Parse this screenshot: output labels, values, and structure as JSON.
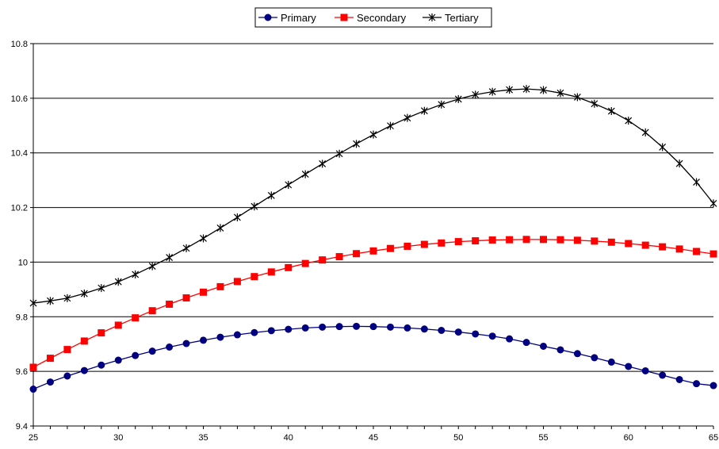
{
  "chart_data": {
    "type": "line",
    "title": "",
    "xlabel": "",
    "ylabel": "",
    "xlim": [
      25,
      65
    ],
    "ylim": [
      9.4,
      10.8
    ],
    "x_ticks": [
      25,
      30,
      35,
      40,
      45,
      50,
      55,
      60,
      65
    ],
    "y_ticks": [
      9.4,
      9.6,
      9.8,
      10,
      10.2,
      10.4,
      10.6,
      10.8
    ],
    "y_tick_labels": [
      "9.4",
      "9.6",
      "9.8",
      "10",
      "10.2",
      "10.4",
      "10.6",
      "10.8"
    ],
    "grid": "horizontal",
    "legend_position": "top-center",
    "x": [
      25,
      26,
      27,
      28,
      29,
      30,
      31,
      32,
      33,
      34,
      35,
      36,
      37,
      38,
      39,
      40,
      41,
      42,
      43,
      44,
      45,
      46,
      47,
      48,
      49,
      50,
      51,
      52,
      53,
      54,
      55,
      56,
      57,
      58,
      59,
      60,
      61,
      62,
      63,
      64,
      65
    ],
    "series": [
      {
        "name": "Primary",
        "color": "#000080",
        "marker": "circle",
        "values": [
          9.535,
          9.561,
          9.583,
          9.603,
          9.623,
          9.641,
          9.658,
          9.674,
          9.689,
          9.702,
          9.714,
          9.725,
          9.734,
          9.742,
          9.749,
          9.754,
          9.759,
          9.762,
          9.764,
          9.765,
          9.764,
          9.762,
          9.759,
          9.755,
          9.75,
          9.744,
          9.737,
          9.729,
          9.719,
          9.706,
          9.692,
          9.679,
          9.665,
          9.65,
          9.634,
          9.618,
          9.602,
          9.586,
          9.57,
          9.555,
          9.548
        ]
      },
      {
        "name": "Secondary",
        "color": "#ff0000",
        "marker": "square",
        "values": [
          9.615,
          9.648,
          9.68,
          9.711,
          9.741,
          9.769,
          9.796,
          9.822,
          9.846,
          9.869,
          9.89,
          9.91,
          9.929,
          9.947,
          9.964,
          9.98,
          9.995,
          10.008,
          10.02,
          10.031,
          10.041,
          10.05,
          10.058,
          10.065,
          10.07,
          10.075,
          10.078,
          10.081,
          10.082,
          10.083,
          10.083,
          10.082,
          10.08,
          10.077,
          10.073,
          10.068,
          10.062,
          10.056,
          10.048,
          10.039,
          10.03
        ]
      },
      {
        "name": "Tertiary",
        "color": "#000000",
        "marker": "star",
        "values": [
          9.85,
          9.858,
          9.868,
          9.885,
          9.905,
          9.928,
          9.955,
          9.985,
          10.017,
          10.051,
          10.087,
          10.125,
          10.164,
          10.204,
          10.244,
          10.283,
          10.322,
          10.36,
          10.397,
          10.433,
          10.467,
          10.499,
          10.528,
          10.554,
          10.577,
          10.597,
          10.613,
          10.624,
          10.631,
          10.634,
          10.63,
          10.619,
          10.604,
          10.58,
          10.553,
          10.518,
          10.475,
          10.421,
          10.361,
          10.293,
          10.215
        ]
      }
    ]
  }
}
